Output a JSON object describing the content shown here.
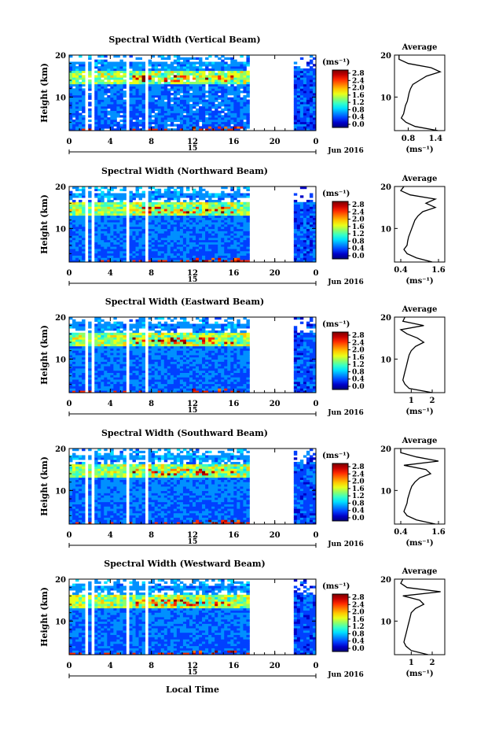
{
  "figure": {
    "xlabel_bottom": "Local Time",
    "date_label": "Jun 2016",
    "day_label": "15",
    "units": "(ms⁻¹)",
    "average_title": "Average",
    "ylabel": "Height (km)"
  },
  "colorbar": {
    "ticks": [
      "2.8",
      "2.4",
      "2.0",
      "1.6",
      "1.2",
      "0.8",
      "0.4",
      "0.0"
    ],
    "colors": [
      "#7a0000",
      "#c40000",
      "#ff2a00",
      "#ff7a00",
      "#ffc800",
      "#e8ff1a",
      "#8cff6a",
      "#35ffc8",
      "#00e0ff",
      "#0090ff",
      "#0040ff",
      "#0000c8",
      "#00007a"
    ]
  },
  "chart_data": [
    {
      "type": "heatmap",
      "title": "Spectral Width (Vertical Beam)",
      "ylabel": "Height (km)",
      "xticks": [
        "0",
        "4",
        "8",
        "12",
        "16",
        "20",
        "0"
      ],
      "yticks": [
        "20",
        "10"
      ],
      "ylim": [
        2,
        20
      ],
      "xlim": [
        0,
        24
      ],
      "data_gaps_hours": [
        [
          1.5,
          1.8
        ],
        [
          2.3,
          2.5
        ],
        [
          5.6,
          5.9
        ],
        [
          7.5,
          7.8
        ],
        [
          17.6,
          21.8
        ]
      ],
      "average_profile": {
        "xticks": [
          "0.8",
          "1.4"
        ],
        "xlim": [
          0.5,
          1.6
        ],
        "height": [
          2,
          3,
          4,
          5,
          6,
          7,
          8,
          9,
          10,
          11,
          12,
          13,
          14,
          15,
          16,
          17,
          18,
          19,
          20
        ],
        "value": [
          1.45,
          0.95,
          0.75,
          0.65,
          0.7,
          0.72,
          0.74,
          0.78,
          0.8,
          0.82,
          0.85,
          0.9,
          1.05,
          1.2,
          1.5,
          1.3,
          0.8,
          0.6,
          0.6
        ]
      }
    },
    {
      "type": "heatmap",
      "title": "Spectral Width (Northward Beam)",
      "ylabel": "Height (km)",
      "xticks": [
        "0",
        "4",
        "8",
        "12",
        "16",
        "20",
        "0"
      ],
      "yticks": [
        "20",
        "10"
      ],
      "ylim": [
        2,
        20
      ],
      "xlim": [
        0,
        24
      ],
      "data_gaps_hours": [
        [
          1.5,
          1.8
        ],
        [
          2.3,
          2.5
        ],
        [
          5.6,
          5.9
        ],
        [
          7.5,
          7.8
        ],
        [
          17.6,
          21.8
        ]
      ],
      "average_profile": {
        "xticks": [
          "0.4",
          "1.6"
        ],
        "xlim": [
          0.2,
          1.8
        ],
        "height": [
          2,
          3,
          4,
          5,
          6,
          7,
          8,
          9,
          10,
          11,
          12,
          13,
          14,
          15,
          16,
          17,
          18,
          19,
          20
        ],
        "value": [
          1.4,
          0.9,
          0.6,
          0.5,
          0.6,
          0.62,
          0.65,
          0.7,
          0.75,
          0.8,
          0.85,
          0.95,
          1.1,
          1.5,
          1.2,
          1.5,
          0.7,
          0.4,
          0.5
        ]
      }
    },
    {
      "type": "heatmap",
      "title": "Spectral Width (Eastward Beam)",
      "ylabel": "Height (km)",
      "xticks": [
        "0",
        "4",
        "8",
        "12",
        "16",
        "20",
        "0"
      ],
      "yticks": [
        "20",
        "10"
      ],
      "ylim": [
        2,
        20
      ],
      "xlim": [
        0,
        24
      ],
      "data_gaps_hours": [
        [
          1.5,
          1.8
        ],
        [
          2.3,
          2.5
        ],
        [
          5.6,
          5.9
        ],
        [
          7.5,
          7.8
        ],
        [
          17.6,
          21.8
        ]
      ],
      "average_profile": {
        "xticks": [
          "1",
          "2"
        ],
        "xlim": [
          0.2,
          2.6
        ],
        "height": [
          2,
          3,
          4,
          5,
          6,
          7,
          8,
          9,
          10,
          11,
          12,
          13,
          14,
          15,
          16,
          17,
          18,
          19,
          20
        ],
        "value": [
          2.0,
          0.9,
          0.7,
          0.6,
          0.65,
          0.7,
          0.75,
          0.8,
          0.85,
          0.9,
          1.0,
          1.2,
          1.6,
          1.3,
          0.8,
          0.5,
          1.6,
          0.6,
          0.7
        ]
      }
    },
    {
      "type": "heatmap",
      "title": "Spectral Width (Southward Beam)",
      "ylabel": "Height (km)",
      "xticks": [
        "0",
        "4",
        "8",
        "12",
        "16",
        "20",
        "0"
      ],
      "yticks": [
        "20",
        "10"
      ],
      "ylim": [
        2,
        20
      ],
      "xlim": [
        0,
        24
      ],
      "data_gaps_hours": [
        [
          1.5,
          1.8
        ],
        [
          2.3,
          2.5
        ],
        [
          5.6,
          5.9
        ],
        [
          7.5,
          7.8
        ],
        [
          17.6,
          21.8
        ]
      ],
      "average_profile": {
        "xticks": [
          "0.4",
          "1.6"
        ],
        "xlim": [
          0.2,
          1.8
        ],
        "height": [
          2,
          3,
          4,
          5,
          6,
          7,
          8,
          9,
          10,
          11,
          12,
          13,
          14,
          15,
          16,
          17,
          18,
          19,
          20
        ],
        "value": [
          1.5,
          0.9,
          0.6,
          0.5,
          0.55,
          0.6,
          0.62,
          0.66,
          0.7,
          0.75,
          0.85,
          1.0,
          1.35,
          1.2,
          0.5,
          1.6,
          0.9,
          0.4,
          0.4
        ]
      }
    },
    {
      "type": "heatmap",
      "title": "Spectral Width (Westward Beam)",
      "ylabel": "Height (km)",
      "xticks": [
        "0",
        "4",
        "8",
        "12",
        "16",
        "20",
        "0"
      ],
      "yticks": [
        "20",
        "10"
      ],
      "ylim": [
        2,
        20
      ],
      "xlim": [
        0,
        24
      ],
      "data_gaps_hours": [
        [
          1.5,
          1.8
        ],
        [
          2.3,
          2.5
        ],
        [
          5.6,
          5.9
        ],
        [
          7.5,
          7.8
        ],
        [
          17.6,
          21.8
        ]
      ],
      "average_profile": {
        "xticks": [
          "1",
          "2"
        ],
        "xlim": [
          0.2,
          2.6
        ],
        "height": [
          2,
          3,
          4,
          5,
          6,
          7,
          8,
          9,
          10,
          11,
          12,
          13,
          14,
          15,
          16,
          17,
          18,
          19,
          20
        ],
        "value": [
          1.8,
          1.0,
          0.75,
          0.65,
          0.7,
          0.75,
          0.8,
          0.85,
          0.9,
          0.95,
          1.0,
          1.2,
          1.6,
          1.4,
          0.6,
          2.4,
          0.8,
          0.5,
          0.6
        ]
      }
    }
  ]
}
